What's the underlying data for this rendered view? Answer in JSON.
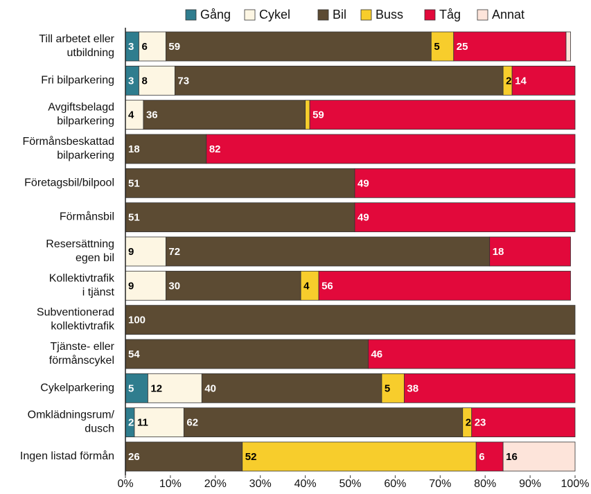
{
  "chart_data": {
    "type": "stacked_barh",
    "categories": [
      "Till arbetet eller\nutbildning",
      "Fri bilparkering",
      "Avgiftsbelagd\nbilparkering",
      "Förmånsbeskattad\nbilparkering",
      "Företagsbil/bilpool",
      "Förmånsbil",
      "Resersättning\negen bil",
      "Kollektivtrafik\ni tjänst",
      "Subventionerad\nkollektivtrafik",
      "Tjänste- eller\nförmånscykel",
      "Cykelparkering",
      "Omklädningsrum/\ndusch",
      "Ingen listad förmån"
    ],
    "series": [
      {
        "name": "Gång",
        "color": "#2f7d8e",
        "label_color": "#ffffff",
        "values": [
          3,
          3,
          null,
          null,
          null,
          null,
          null,
          null,
          null,
          null,
          5,
          2,
          null
        ]
      },
      {
        "name": "Cykel",
        "color": "#fdf6e3",
        "label_color": "#000000",
        "values": [
          6,
          8,
          4,
          null,
          null,
          null,
          9,
          9,
          null,
          null,
          12,
          11,
          null
        ]
      },
      {
        "name": "Bil",
        "color": "#5c4b33",
        "label_color": "#ffffff",
        "values": [
          59,
          73,
          36,
          18,
          51,
          51,
          72,
          30,
          100,
          54,
          40,
          62,
          26
        ]
      },
      {
        "name": "Buss",
        "color": "#f7cd2c",
        "label_color": "#000000",
        "values": [
          5,
          2,
          1,
          null,
          null,
          null,
          null,
          4,
          null,
          null,
          5,
          2,
          52
        ],
        "value_labels": [
          "5",
          "2",
          null,
          null,
          null,
          null,
          null,
          "4",
          null,
          null,
          "5",
          "2",
          "52"
        ]
      },
      {
        "name": "Tåg",
        "color": "#e2093b",
        "label_color": "#ffffff",
        "values": [
          25,
          14,
          59,
          82,
          49,
          49,
          18,
          56,
          null,
          46,
          38,
          23,
          6
        ]
      },
      {
        "name": "Annat",
        "color": "#fde4da",
        "label_color": "#000000",
        "values": [
          1,
          null,
          null,
          null,
          null,
          null,
          null,
          null,
          null,
          null,
          null,
          null,
          16
        ],
        "value_labels": [
          null,
          null,
          null,
          null,
          null,
          null,
          null,
          null,
          null,
          null,
          null,
          null,
          "16"
        ]
      }
    ],
    "xlim": [
      0,
      100
    ],
    "xticks": [
      {
        "value": 0,
        "label": "0%"
      },
      {
        "value": 10,
        "label": "10%"
      },
      {
        "value": 20,
        "label": "20%"
      },
      {
        "value": 30,
        "label": "30%"
      },
      {
        "value": 40,
        "label": "40%"
      },
      {
        "value": 50,
        "label": "50%"
      },
      {
        "value": 60,
        "label": "60%"
      },
      {
        "value": 70,
        "label": "70%"
      },
      {
        "value": 80,
        "label": "80%"
      },
      {
        "value": 90,
        "label": "90%"
      },
      {
        "value": 100,
        "label": "100%"
      }
    ],
    "legend": "top"
  }
}
